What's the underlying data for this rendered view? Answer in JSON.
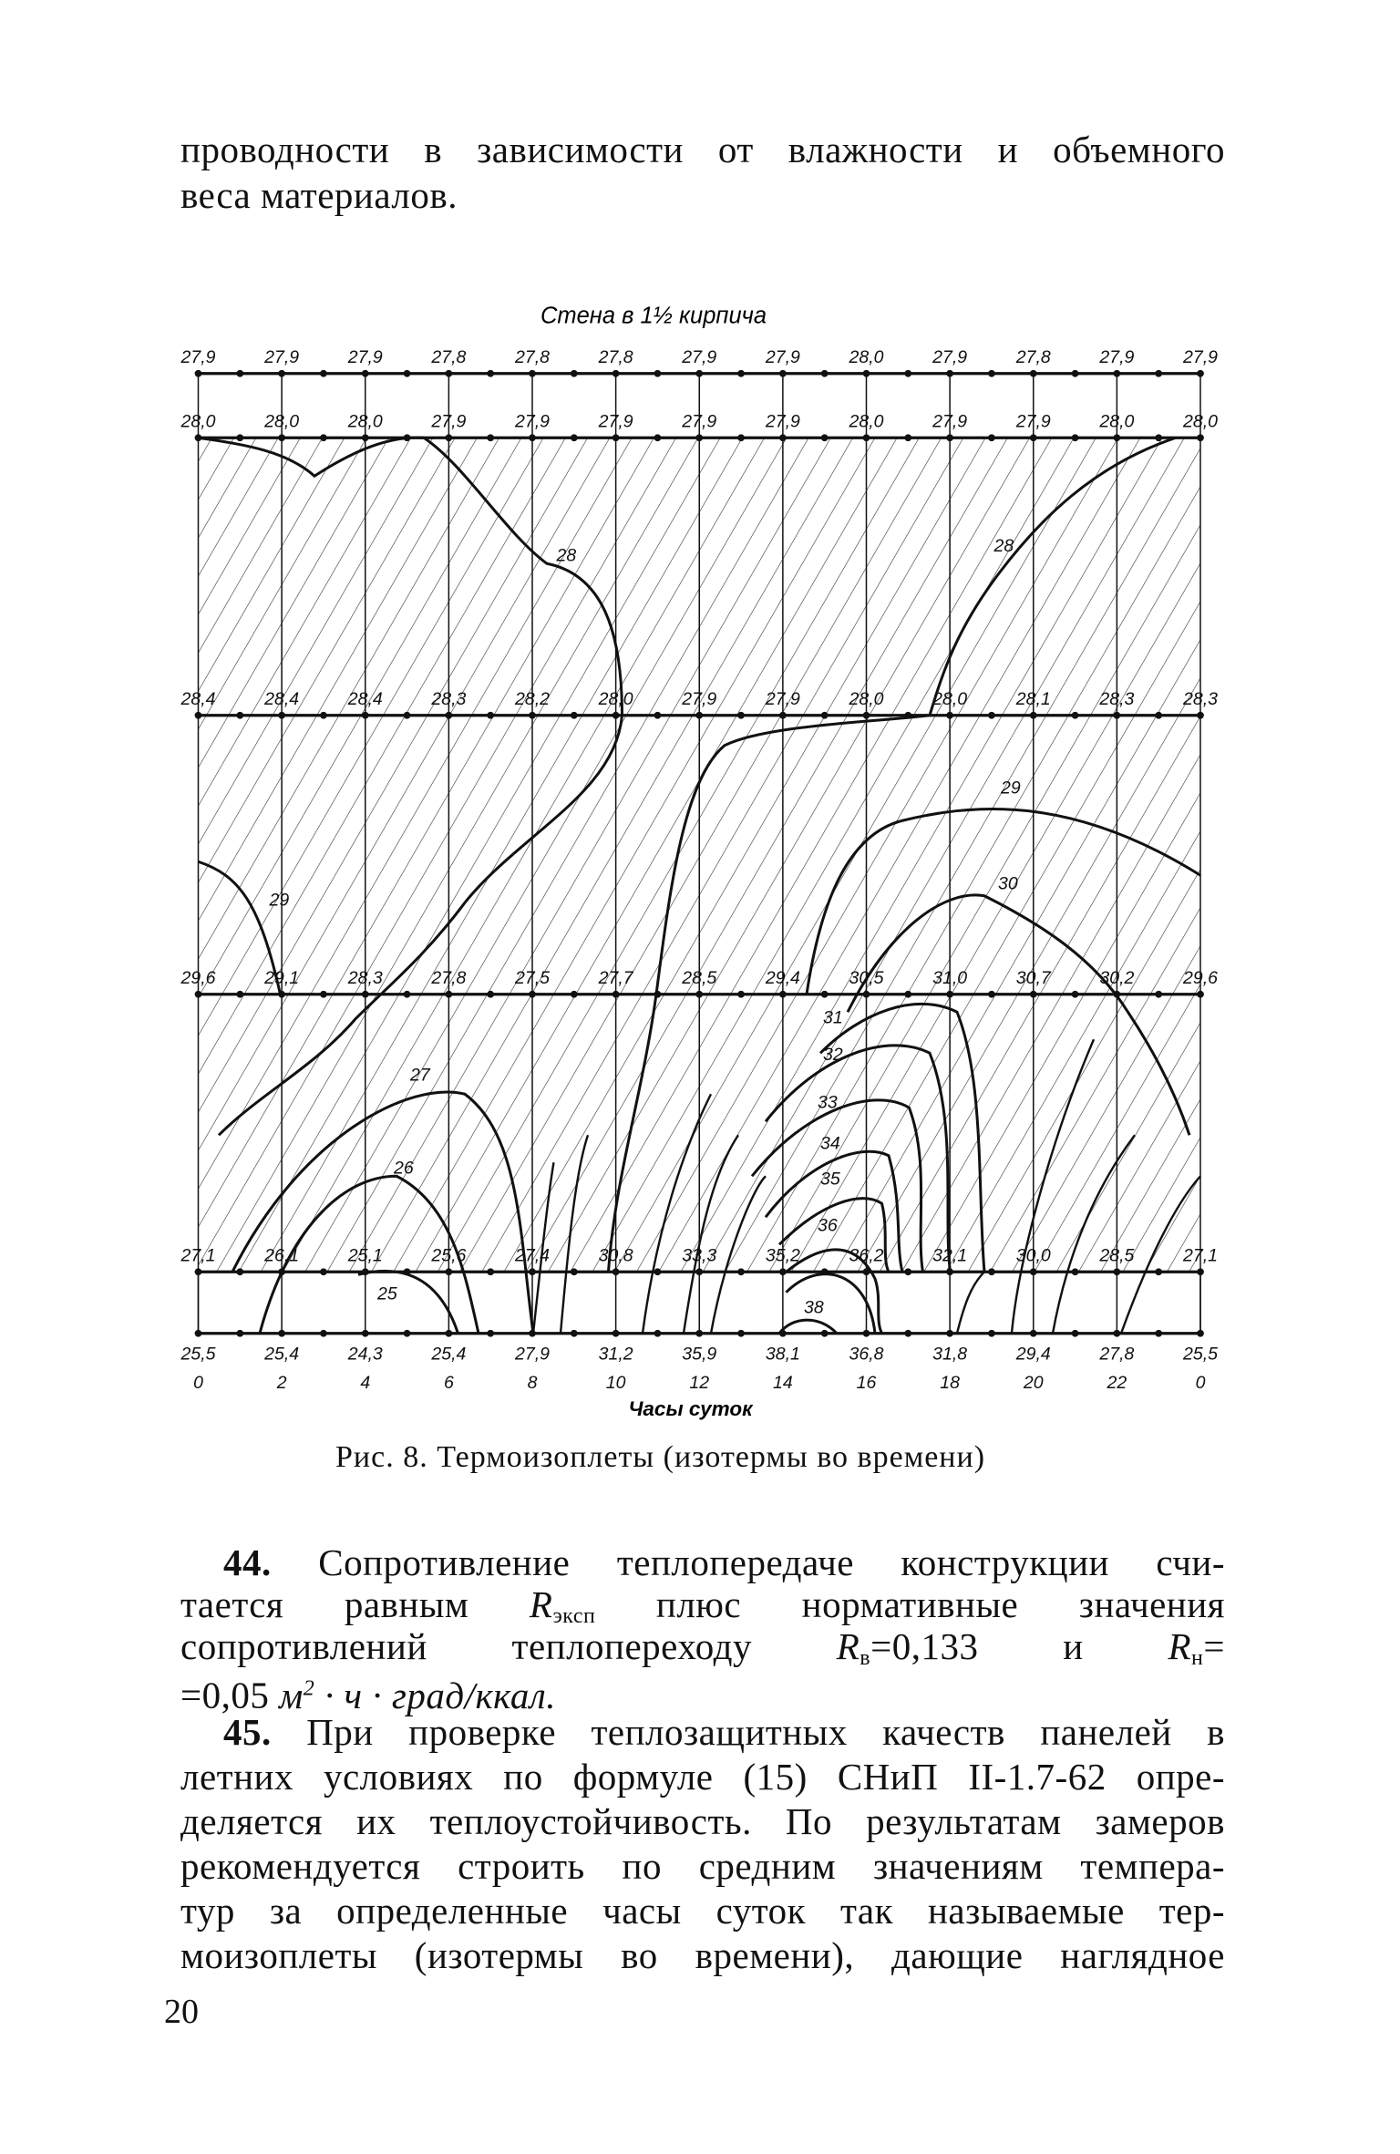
{
  "intro_lines": [
    "проводности в зависимости от влажности и объемного",
    "веса материалов."
  ],
  "figure": {
    "title": "Стена в 1½ кирпича",
    "xlabel": "Часы суток",
    "caption": "Рис. 8. Термоизоплеты (изотермы во времени)",
    "hours": [
      "0",
      "2",
      "4",
      "6",
      "8",
      "10",
      "12",
      "14",
      "16",
      "18",
      "20",
      "22",
      "0"
    ],
    "rows": [
      [
        "27,9",
        "27,9",
        "27,9",
        "27,8",
        "27,8",
        "27,8",
        "27,9",
        "27,9",
        "28,0",
        "27,9",
        "27,8",
        "27,9",
        "27,9"
      ],
      [
        "28,0",
        "28,0",
        "28,0",
        "27,9",
        "27,9",
        "27,9",
        "27,9",
        "27,9",
        "28,0",
        "27,9",
        "27,9",
        "28,0",
        "28,0"
      ],
      [
        "28,4",
        "28,4",
        "28,4",
        "28,3",
        "28,2",
        "28,0",
        "27,9",
        "27,9",
        "28,0",
        "28,0",
        "28,1",
        "28,3",
        "28,3"
      ],
      [
        "29,6",
        "29,1",
        "28,3",
        "27,8",
        "27,5",
        "27,7",
        "28,5",
        "29,4",
        "30,5",
        "31,0",
        "30,7",
        "30,2",
        "29,6"
      ],
      [
        "27,1",
        "26,1",
        "25,1",
        "25,6",
        "27,4",
        "30,8",
        "33,3",
        "35,2",
        "36,2",
        "32,1",
        "30,0",
        "28,5",
        "27,1"
      ],
      [
        "25,5",
        "25,4",
        "24,3",
        "25,4",
        "27,9",
        "31,2",
        "35,9",
        "38,1",
        "36,8",
        "31,8",
        "29,4",
        "27,8",
        "25,5"
      ]
    ],
    "isotherm_labels": [
      "28",
      "28",
      "29",
      "29",
      "30",
      "31",
      "32",
      "33",
      "34",
      "35",
      "36",
      "38",
      "27",
      "26",
      "25"
    ]
  },
  "para44": {
    "num": "44.",
    "l1": "Сопротивление теплопередаче конструкции счи-",
    "l2a": "тается равным",
    "R": "R",
    "eksp": "эксп",
    "l2b": "плюс нормативные значения",
    "l3a": "сопротивлений теплопереходу",
    "v": "в",
    "l3b": "=0,133 и",
    "n": "н",
    "l3c": "=",
    "l4a": "=0,05",
    "l4b": "м",
    "sq": "2",
    "l4c": " · ч · град/ккал."
  },
  "para45": {
    "num": "45.",
    "lines": [
      "При проверке теплозащитных качеств панелей в",
      "летних условиях по формуле (15) СНиП II-1.7-62 опре-",
      "деляется их теплоустойчивость. По результатам замеров",
      "рекомендуется строить по средним значениям темпера-",
      "тур за определенные часы суток так называемые тер-",
      "моизоплеты (изотермы во времени), дающие наглядное"
    ]
  },
  "page_number": "20"
}
